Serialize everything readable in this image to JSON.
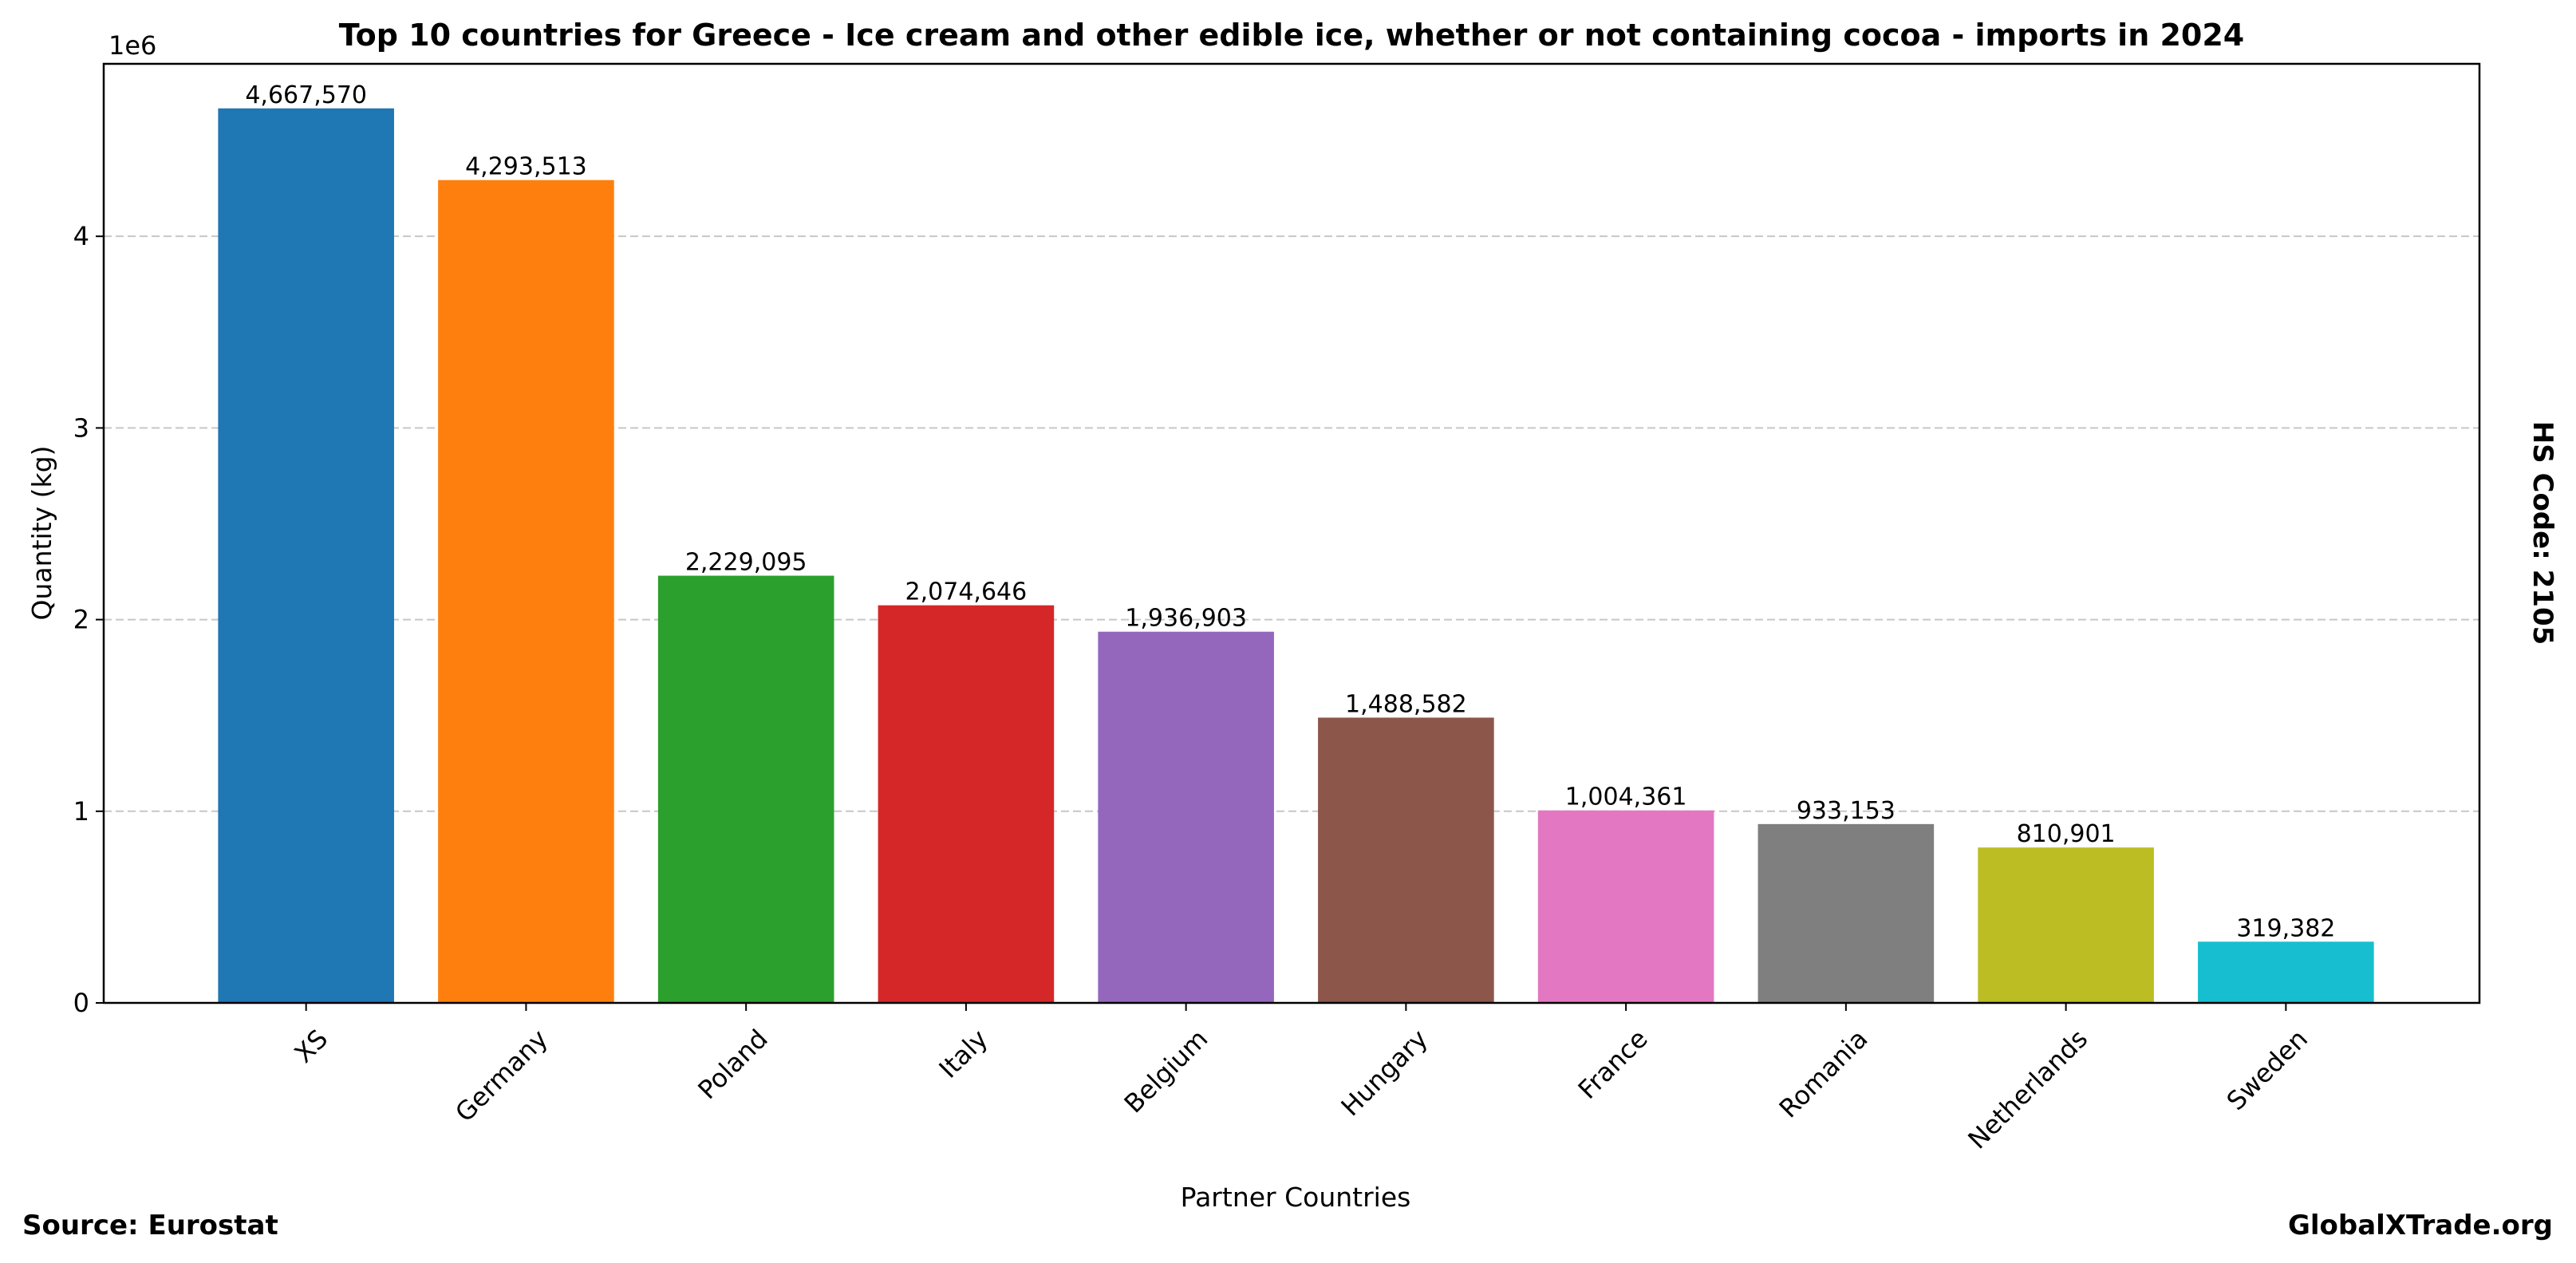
{
  "chart_data": {
    "type": "bar",
    "title": "Top 10 countries for Greece - Ice cream and other edible ice, whether or not containing cocoa - imports in 2024",
    "xlabel": "Partner Countries",
    "ylabel": "Quantity (kg)",
    "y_offset_label": "1e6",
    "categories": [
      "XS",
      "Germany",
      "Poland",
      "Italy",
      "Belgium",
      "Hungary",
      "France",
      "Romania",
      "Netherlands",
      "Sweden"
    ],
    "values": [
      4667570,
      4293513,
      2229095,
      2074646,
      1936903,
      1488582,
      1004361,
      933153,
      810901,
      319382
    ],
    "data_labels": [
      "4,667,570",
      "4,293,513",
      "2,229,095",
      "2,074,646",
      "1,936,903",
      "1,488,582",
      "1,004,361",
      "933,153",
      "810,901",
      "319,382"
    ],
    "colors": [
      "#1f77b4",
      "#ff7f0e",
      "#2ca02c",
      "#d62728",
      "#9467bd",
      "#8c564b",
      "#e377c2",
      "#7f7f7f",
      "#bcbd22",
      "#17becf"
    ],
    "yticks": [
      0,
      1,
      2,
      3,
      4
    ],
    "ytick_labels": [
      "0",
      "1",
      "2",
      "3",
      "4"
    ],
    "ylim": [
      0,
      4900000
    ],
    "grid": "horizontal dashed",
    "legend": "none"
  },
  "side_label": "HS Code: 2105",
  "footer": {
    "source": "Source: Eurostat",
    "brand": "GlobalXTrade.org"
  }
}
